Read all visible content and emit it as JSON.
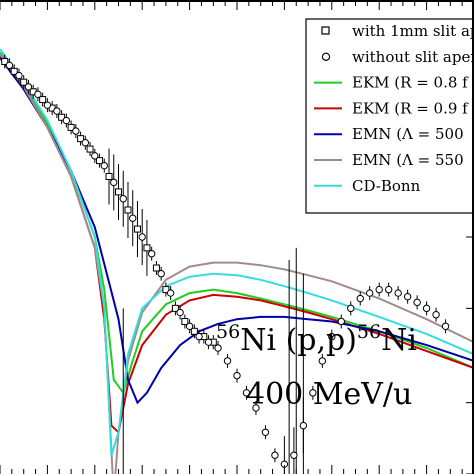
{
  "chart_data": {
    "type": "scatter",
    "x_range": [
      0,
      1
    ],
    "y_log": true,
    "y_range": [
      0.01,
      1
    ],
    "grid": false,
    "legend_position": "top-right",
    "series": [
      {
        "name": "with 1mm slit ap",
        "kind": "markers",
        "marker": "square",
        "color": "#000000",
        "x": [
          0.01,
          0.03,
          0.05,
          0.07,
          0.09,
          0.11,
          0.13,
          0.15,
          0.17,
          0.19,
          0.21,
          0.23,
          0.25,
          0.27,
          0.29,
          0.31,
          0.33,
          0.35,
          0.37,
          0.39,
          0.41,
          0.43,
          0.45
        ],
        "y": [
          0.55,
          0.5,
          0.45,
          0.41,
          0.38,
          0.35,
          0.32,
          0.29,
          0.26,
          0.235,
          0.21,
          0.18,
          0.155,
          0.13,
          0.108,
          0.09,
          0.074,
          0.06,
          0.05,
          0.044,
          0.04,
          0.038,
          0.036
        ]
      },
      {
        "name": "without slit aper",
        "kind": "markers",
        "marker": "circle",
        "color": "#000000",
        "x": [
          0.02,
          0.04,
          0.06,
          0.08,
          0.1,
          0.12,
          0.14,
          0.16,
          0.18,
          0.2,
          0.22,
          0.24,
          0.26,
          0.28,
          0.3,
          0.32,
          0.34,
          0.36,
          0.38,
          0.4,
          0.42,
          0.44,
          0.46,
          0.48,
          0.5,
          0.52,
          0.54,
          0.56,
          0.58,
          0.6,
          0.62,
          0.64,
          0.66,
          0.68,
          0.7,
          0.72,
          0.74,
          0.76,
          0.78,
          0.8,
          0.82,
          0.84,
          0.86,
          0.88,
          0.9,
          0.92,
          0.94
        ],
        "y": [
          0.53,
          0.48,
          0.43,
          0.4,
          0.36,
          0.34,
          0.31,
          0.28,
          0.25,
          0.22,
          0.2,
          0.17,
          0.145,
          0.12,
          0.1,
          0.085,
          0.07,
          0.058,
          0.048,
          0.042,
          0.038,
          0.036,
          0.034,
          0.03,
          0.026,
          0.022,
          0.019,
          0.015,
          0.012,
          0.011,
          0.012,
          0.016,
          0.022,
          0.03,
          0.038,
          0.044,
          0.05,
          0.055,
          0.058,
          0.06,
          0.06,
          0.058,
          0.056,
          0.053,
          0.05,
          0.047,
          0.042
        ]
      },
      {
        "name": "EKM (R = 0.8 f",
        "kind": "line",
        "color": "#22cc22",
        "x": [
          0,
          0.05,
          0.1,
          0.15,
          0.2,
          0.22,
          0.24,
          0.26,
          0.28,
          0.3,
          0.35,
          0.4,
          0.45,
          0.5,
          0.55,
          0.6,
          0.65,
          0.7,
          0.8,
          0.9,
          1.0
        ],
        "y": [
          0.6,
          0.44,
          0.3,
          0.19,
          0.1,
          0.06,
          0.025,
          0.022,
          0.03,
          0.04,
          0.052,
          0.058,
          0.06,
          0.058,
          0.055,
          0.052,
          0.049,
          0.046,
          0.04,
          0.034,
          0.028
        ]
      },
      {
        "name": "EKM (R = 0.9 f",
        "kind": "line",
        "color": "#cc0000",
        "x": [
          0,
          0.05,
          0.1,
          0.15,
          0.2,
          0.22,
          0.235,
          0.25,
          0.27,
          0.3,
          0.35,
          0.4,
          0.45,
          0.5,
          0.55,
          0.6,
          0.65,
          0.7,
          0.8,
          0.9,
          1.0
        ],
        "y": [
          0.58,
          0.43,
          0.29,
          0.18,
          0.09,
          0.045,
          0.016,
          0.015,
          0.024,
          0.035,
          0.047,
          0.054,
          0.057,
          0.056,
          0.054,
          0.051,
          0.048,
          0.045,
          0.039,
          0.033,
          0.028
        ]
      },
      {
        "name": "EMN (Λ = 500",
        "kind": "line",
        "color": "#0000aa",
        "x": [
          0,
          0.05,
          0.1,
          0.15,
          0.2,
          0.25,
          0.27,
          0.29,
          0.31,
          0.34,
          0.38,
          0.42,
          0.46,
          0.5,
          0.55,
          0.6,
          0.65,
          0.7,
          0.8,
          0.9,
          1.0
        ],
        "y": [
          0.57,
          0.42,
          0.29,
          0.19,
          0.11,
          0.045,
          0.025,
          0.02,
          0.022,
          0.028,
          0.035,
          0.04,
          0.043,
          0.045,
          0.046,
          0.046,
          0.045,
          0.044,
          0.04,
          0.035,
          0.03
        ]
      },
      {
        "name": "EMN (Λ = 550",
        "kind": "line",
        "color": "#a08c8c",
        "x": [
          0,
          0.05,
          0.1,
          0.15,
          0.2,
          0.22,
          0.23,
          0.24,
          0.25,
          0.27,
          0.3,
          0.35,
          0.4,
          0.45,
          0.5,
          0.55,
          0.6,
          0.65,
          0.7,
          0.8,
          0.9,
          1.0
        ],
        "y": [
          0.59,
          0.43,
          0.29,
          0.18,
          0.09,
          0.05,
          0.02,
          0.008,
          0.015,
          0.03,
          0.048,
          0.066,
          0.075,
          0.078,
          0.078,
          0.076,
          0.073,
          0.069,
          0.065,
          0.055,
          0.045,
          0.036
        ]
      },
      {
        "name": "CD-Bonn",
        "kind": "line",
        "color": "#33dddd",
        "x": [
          0,
          0.05,
          0.1,
          0.15,
          0.2,
          0.22,
          0.235,
          0.25,
          0.27,
          0.3,
          0.35,
          0.4,
          0.45,
          0.5,
          0.55,
          0.6,
          0.65,
          0.7,
          0.8,
          0.9,
          1.0
        ],
        "y": [
          0.62,
          0.45,
          0.31,
          0.19,
          0.1,
          0.05,
          0.012,
          0.015,
          0.032,
          0.05,
          0.062,
          0.068,
          0.07,
          0.069,
          0.066,
          0.062,
          0.058,
          0.054,
          0.046,
          0.039,
          0.032
        ]
      }
    ],
    "annotations": [
      {
        "sup": "56",
        "base": "Ni (p,p)",
        "sup2": "56",
        "base2": "Ni"
      },
      {
        "text": "400 MeV/u"
      }
    ]
  }
}
